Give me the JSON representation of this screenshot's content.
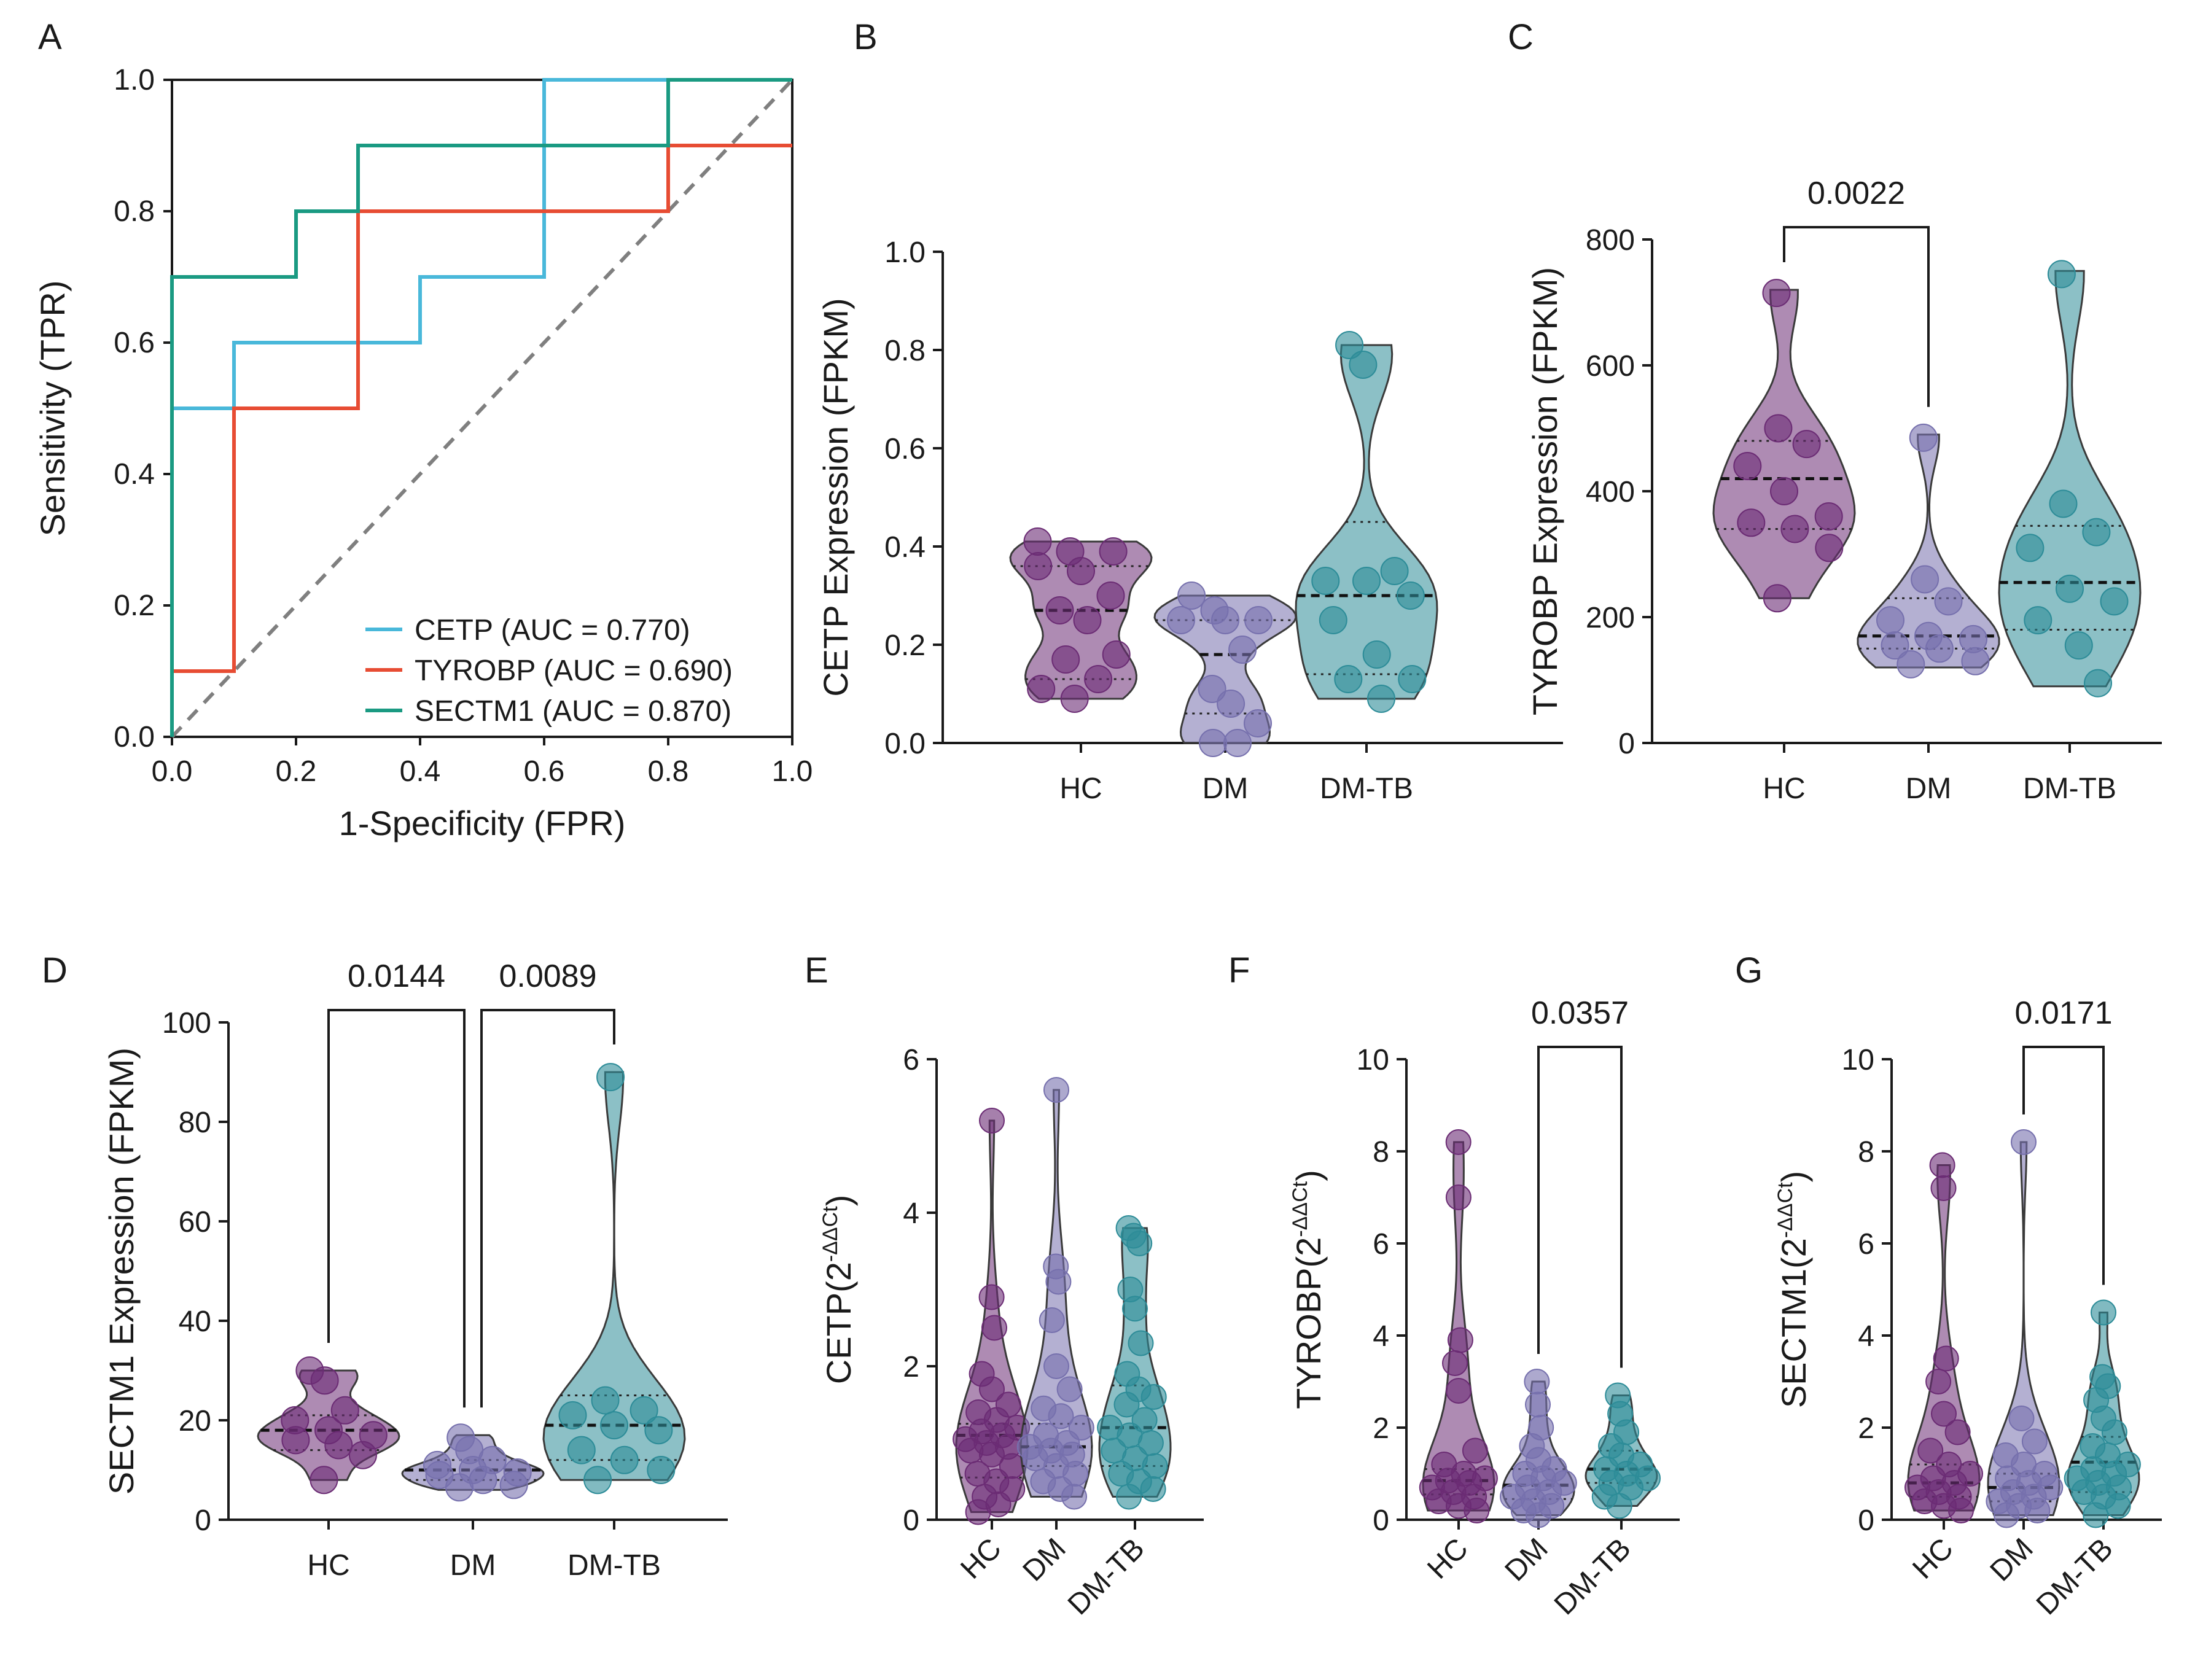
{
  "colors": {
    "hc": "#6b2c74",
    "dm": "#7670ad",
    "dmtb": "#2d8c98",
    "cetp_roc": "#49b8da",
    "tyrobp_roc": "#e74c33",
    "sectm1_roc": "#1a9a82",
    "diagonal": "#7f7f7f"
  },
  "chart_data": [
    {
      "panel": "A",
      "type": "line",
      "xlabel": "1-Specificity (FPR)",
      "ylabel": "Sensitivity (TPR)",
      "xlim": [
        0,
        1
      ],
      "ylim": [
        0,
        1
      ],
      "ticks": [
        "0.0",
        "0.2",
        "0.4",
        "0.6",
        "0.8",
        "1.0"
      ],
      "series": [
        {
          "name": "CETP",
          "legend": "CETP (AUC =  0.770)",
          "color_key": "cetp_roc",
          "x": [
            0,
            0,
            0.1,
            0.1,
            0.4,
            0.4,
            0.6,
            0.6,
            1.0
          ],
          "y": [
            0,
            0.5,
            0.5,
            0.6,
            0.6,
            0.7,
            0.7,
            1.0,
            1.0
          ]
        },
        {
          "name": "TYROBP",
          "legend": "TYROBP (AUC =  0.690)",
          "color_key": "tyrobp_roc",
          "x": [
            0,
            0,
            0.1,
            0.1,
            0.3,
            0.3,
            0.8,
            0.8,
            1.0
          ],
          "y": [
            0,
            0.1,
            0.1,
            0.5,
            0.5,
            0.8,
            0.8,
            0.9,
            0.9
          ]
        },
        {
          "name": "SECTM1",
          "legend": "SECTM1 (AUC =  0.870)",
          "color_key": "sectm1_roc",
          "x": [
            0,
            0,
            0.2,
            0.2,
            0.3,
            0.3,
            0.8,
            0.8,
            1.0
          ],
          "y": [
            0,
            0.7,
            0.7,
            0.8,
            0.8,
            0.9,
            0.9,
            1.0,
            1.0
          ]
        }
      ],
      "diagonal": {
        "x": [
          0,
          1
        ],
        "y": [
          0,
          1
        ],
        "style": "dashed"
      },
      "legend_position": "bottom-right"
    },
    {
      "panel": "B",
      "type": "violin",
      "ylabel": "CETP Expression (FPKM)",
      "ylim": [
        0,
        1.0
      ],
      "yticks": [
        0,
        0.2,
        0.4,
        0.6,
        0.8,
        1.0
      ],
      "ytick_labels": [
        "0.0",
        "0.2",
        "0.4",
        "0.6",
        "0.8",
        "1.0"
      ],
      "categories": [
        "HC",
        "DM",
        "DM-TB"
      ],
      "tick_rotation": 0,
      "groups": [
        {
          "name": "HC",
          "color_key": "hc",
          "min": 0.09,
          "max": 0.41,
          "q1": 0.13,
          "median": 0.27,
          "q3": 0.36,
          "points": [
            0.41,
            0.39,
            0.39,
            0.36,
            0.35,
            0.3,
            0.27,
            0.25,
            0.18,
            0.17,
            0.13,
            0.11,
            0.09
          ]
        },
        {
          "name": "DM",
          "color_key": "dm",
          "min": 0.0,
          "max": 0.3,
          "q1": 0.06,
          "median": 0.18,
          "q3": 0.25,
          "points": [
            0.3,
            0.27,
            0.25,
            0.25,
            0.25,
            0.19,
            0.11,
            0.08,
            0.04,
            0.0,
            0.0
          ]
        },
        {
          "name": "DM-TB",
          "color_key": "dmtb",
          "min": 0.09,
          "max": 0.81,
          "q1": 0.14,
          "median": 0.3,
          "q3": 0.45,
          "points": [
            0.81,
            0.77,
            0.35,
            0.33,
            0.33,
            0.3,
            0.25,
            0.18,
            0.13,
            0.13,
            0.09
          ]
        }
      ],
      "comparisons": []
    },
    {
      "panel": "C",
      "type": "violin",
      "ylabel": "TYROBP Expression (FPKM)",
      "ylim": [
        0,
        800
      ],
      "yticks": [
        0,
        200,
        400,
        600,
        800
      ],
      "ytick_labels": [
        "0",
        "200",
        "400",
        "600",
        "800"
      ],
      "categories": [
        "HC",
        "DM",
        "DM-TB"
      ],
      "tick_rotation": 0,
      "groups": [
        {
          "name": "HC",
          "color_key": "hc",
          "min": 230,
          "max": 720,
          "q1": 340,
          "median": 420,
          "q3": 480,
          "points": [
            715,
            500,
            475,
            440,
            400,
            360,
            350,
            340,
            310,
            230
          ]
        },
        {
          "name": "DM",
          "color_key": "dm",
          "min": 120,
          "max": 490,
          "q1": 150,
          "median": 170,
          "q3": 230,
          "points": [
            485,
            260,
            225,
            195,
            170,
            165,
            155,
            150,
            130,
            125
          ]
        },
        {
          "name": "DM-TB",
          "color_key": "dmtb",
          "min": 90,
          "max": 750,
          "q1": 180,
          "median": 255,
          "q3": 345,
          "points": [
            745,
            380,
            335,
            310,
            245,
            225,
            195,
            155,
            95
          ]
        }
      ],
      "comparisons": [
        {
          "from": "HC",
          "to": "DM",
          "p": "0.0022",
          "level": 0
        }
      ]
    },
    {
      "panel": "D",
      "type": "violin",
      "ylabel": "SECTM1 Expression (FPKM)",
      "ylim": [
        0,
        100
      ],
      "yticks": [
        0,
        20,
        40,
        60,
        80,
        100
      ],
      "ytick_labels": [
        "0",
        "20",
        "40",
        "60",
        "80",
        "100"
      ],
      "categories": [
        "HC",
        "DM",
        "DM-TB"
      ],
      "tick_rotation": 0,
      "groups": [
        {
          "name": "HC",
          "color_key": "hc",
          "min": 8,
          "max": 30,
          "q1": 14,
          "median": 18,
          "q3": 21,
          "points": [
            30,
            28,
            22,
            20,
            18,
            17,
            16,
            15,
            13,
            8
          ]
        },
        {
          "name": "DM",
          "color_key": "dm",
          "min": 6,
          "max": 17,
          "q1": 8,
          "median": 10,
          "q3": 12,
          "points": [
            16.5,
            14,
            12,
            11,
            10,
            9.5,
            9,
            8,
            7,
            6.5
          ]
        },
        {
          "name": "DM-TB",
          "color_key": "dmtb",
          "min": 8,
          "max": 90,
          "q1": 12,
          "median": 19,
          "q3": 25,
          "points": [
            89,
            24,
            22,
            21,
            19,
            18,
            14,
            12,
            10,
            8
          ]
        }
      ],
      "comparisons": [
        {
          "from": "HC",
          "to": "DM",
          "p": "0.0144",
          "level": 0
        },
        {
          "from": "DM",
          "to": "DM-TB",
          "p": "0.0089",
          "level": 0
        }
      ]
    },
    {
      "panel": "E",
      "type": "violin",
      "ylabel": "CETP(2⁻ᐞᐞᶜᵗ)",
      "ylabel_main": "CETP(2",
      "ylabel_sup": "-ΔΔCt",
      "ylim": [
        0,
        6
      ],
      "yticks": [
        0,
        2,
        4,
        6
      ],
      "ytick_labels": [
        "0",
        "2",
        "4",
        "6"
      ],
      "categories": [
        "HC",
        "DM",
        "DM-TB"
      ],
      "tick_rotation": -45,
      "groups": [
        {
          "name": "HC",
          "color_key": "hc",
          "min": 0.1,
          "max": 5.2,
          "q1": 0.55,
          "median": 1.1,
          "q3": 1.25,
          "points": [
            5.2,
            2.9,
            2.5,
            1.9,
            1.7,
            1.5,
            1.4,
            1.3,
            1.2,
            1.15,
            1.1,
            1.05,
            1.0,
            0.95,
            0.9,
            0.85,
            0.7,
            0.6,
            0.5,
            0.4,
            0.3,
            0.2,
            0.1
          ]
        },
        {
          "name": "DM",
          "color_key": "dm",
          "min": 0.3,
          "max": 5.6,
          "q1": 0.7,
          "median": 0.95,
          "q3": 1.25,
          "points": [
            5.6,
            3.3,
            3.1,
            2.6,
            2.0,
            1.7,
            1.45,
            1.35,
            1.2,
            1.1,
            1.0,
            0.95,
            0.9,
            0.85,
            0.8,
            0.7,
            0.6,
            0.5,
            0.4,
            0.3
          ]
        },
        {
          "name": "DM-TB",
          "color_key": "dmtb",
          "min": 0.3,
          "max": 3.8,
          "q1": 0.7,
          "median": 1.2,
          "q3": 1.75,
          "points": [
            3.8,
            3.7,
            3.6,
            3.0,
            2.75,
            2.3,
            1.9,
            1.7,
            1.6,
            1.5,
            1.3,
            1.2,
            1.1,
            1.0,
            0.9,
            0.8,
            0.7,
            0.6,
            0.5,
            0.4,
            0.3
          ]
        }
      ],
      "comparisons": []
    },
    {
      "panel": "F",
      "type": "violin",
      "ylabel": "TYROBP(2⁻ᐞᐞᶜᵗ)",
      "ylabel_main": "TYROBP(2",
      "ylabel_sup": "-ΔΔCt",
      "ylim": [
        0,
        10
      ],
      "yticks": [
        0,
        2,
        4,
        6,
        8,
        10
      ],
      "ytick_labels": [
        "0",
        "2",
        "4",
        "6",
        "8",
        "10"
      ],
      "categories": [
        "HC",
        "DM",
        "DM-TB"
      ],
      "tick_rotation": -45,
      "groups": [
        {
          "name": "HC",
          "color_key": "hc",
          "min": 0.2,
          "max": 8.2,
          "q1": 0.55,
          "median": 0.85,
          "q3": 1.1,
          "points": [
            8.2,
            7.0,
            3.9,
            3.4,
            2.8,
            1.5,
            1.2,
            1.0,
            0.9,
            0.85,
            0.8,
            0.7,
            0.6,
            0.5,
            0.4,
            0.3,
            0.2
          ]
        },
        {
          "name": "DM",
          "color_key": "dm",
          "min": 0.1,
          "max": 3.0,
          "q1": 0.45,
          "median": 0.75,
          "q3": 1.1,
          "points": [
            3.0,
            2.5,
            2.0,
            1.6,
            1.3,
            1.1,
            1.0,
            0.9,
            0.8,
            0.7,
            0.6,
            0.5,
            0.4,
            0.3,
            0.2,
            0.1
          ]
        },
        {
          "name": "DM-TB",
          "color_key": "dmtb",
          "min": 0.3,
          "max": 2.7,
          "q1": 0.8,
          "median": 1.1,
          "q3": 1.5,
          "points": [
            2.7,
            2.3,
            1.9,
            1.6,
            1.4,
            1.2,
            1.1,
            1.0,
            0.9,
            0.8,
            0.7,
            0.5,
            0.3
          ]
        }
      ],
      "comparisons": [
        {
          "from": "DM",
          "to": "DM-TB",
          "p": "0.0357",
          "level": 0
        }
      ]
    },
    {
      "panel": "G",
      "type": "violin",
      "ylabel": "SECTM1(2⁻ᐞᐞᶜᵗ)",
      "ylabel_main": "SECTM1(2",
      "ylabel_sup": "-ΔΔCt",
      "ylim": [
        0,
        10
      ],
      "yticks": [
        0,
        2,
        4,
        6,
        8,
        10
      ],
      "ytick_labels": [
        "0",
        "2",
        "4",
        "6",
        "8",
        "10"
      ],
      "categories": [
        "HC",
        "DM",
        "DM-TB"
      ],
      "tick_rotation": -45,
      "groups": [
        {
          "name": "HC",
          "color_key": "hc",
          "min": 0.2,
          "max": 7.7,
          "q1": 0.5,
          "median": 0.8,
          "q3": 1.2,
          "points": [
            7.7,
            7.2,
            3.5,
            3.0,
            2.3,
            1.9,
            1.5,
            1.2,
            1.0,
            0.9,
            0.8,
            0.7,
            0.6,
            0.5,
            0.4,
            0.3,
            0.2
          ]
        },
        {
          "name": "DM",
          "color_key": "dm",
          "min": 0.1,
          "max": 8.2,
          "q1": 0.4,
          "median": 0.7,
          "q3": 1.0,
          "points": [
            8.2,
            2.2,
            1.7,
            1.4,
            1.2,
            1.0,
            0.9,
            0.8,
            0.7,
            0.6,
            0.5,
            0.4,
            0.3,
            0.2,
            0.1
          ]
        },
        {
          "name": "DM-TB",
          "color_key": "dmtb",
          "min": 0.1,
          "max": 4.5,
          "q1": 0.6,
          "median": 1.25,
          "q3": 1.8,
          "points": [
            4.5,
            3.1,
            2.9,
            2.6,
            2.2,
            1.9,
            1.6,
            1.4,
            1.2,
            1.1,
            1.0,
            0.9,
            0.8,
            0.7,
            0.6,
            0.5,
            0.3,
            0.1
          ]
        }
      ],
      "comparisons": [
        {
          "from": "DM",
          "to": "DM-TB",
          "p": "0.0171",
          "level": 0
        }
      ]
    }
  ]
}
